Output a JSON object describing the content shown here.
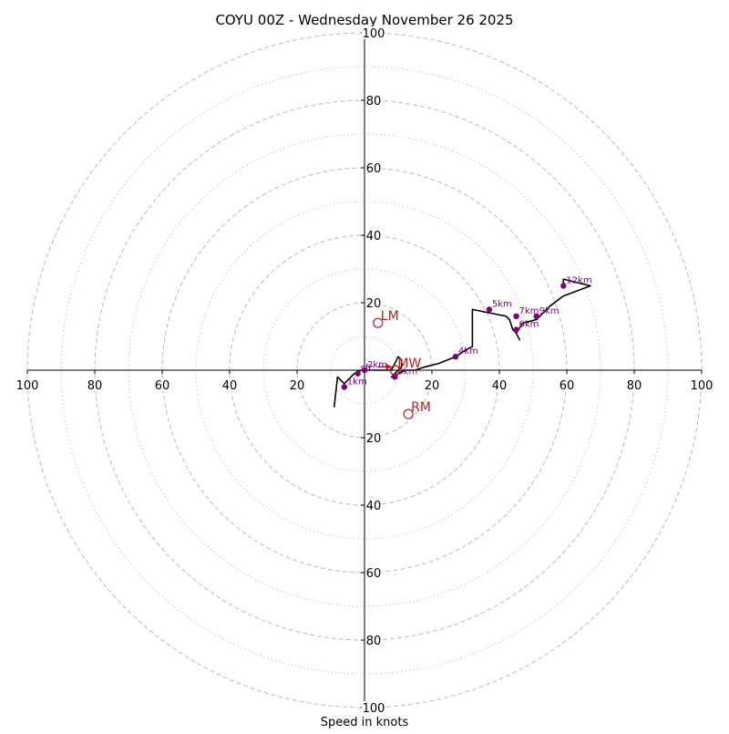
{
  "chart_data": {
    "type": "hodograph",
    "title": "COYU 00Z - Wednesday November 26 2025",
    "xlabel": "Speed in knots",
    "range_knots": 100,
    "axis_ticks": {
      "x_left": [
        "100",
        "80",
        "60",
        "40",
        "20"
      ],
      "x_right": [
        "20",
        "40",
        "60",
        "80",
        "100"
      ],
      "y_top": [
        "100",
        "80",
        "60",
        "40",
        "20"
      ],
      "y_bottom": [
        "20",
        "40",
        "60",
        "80",
        "100"
      ]
    },
    "rings": {
      "dashed_knots": [
        20,
        40,
        60,
        80,
        100
      ],
      "dotted_knots": [
        10,
        30,
        50,
        70,
        90
      ]
    },
    "colors": {
      "ring": "#bbbbbb",
      "axis": "#000000",
      "trace": "#000000",
      "height_marker": "#800080",
      "storm_motion": "#b22222"
    },
    "hodograph_trace_uv": [
      [
        -9,
        -11
      ],
      [
        -8,
        -2
      ],
      [
        -6,
        -4
      ],
      [
        -3,
        -1
      ],
      [
        -1,
        0
      ],
      [
        2,
        0
      ],
      [
        8,
        0
      ],
      [
        10,
        4
      ],
      [
        11,
        3
      ],
      [
        11,
        1
      ],
      [
        10,
        0
      ],
      [
        8,
        -2
      ],
      [
        9,
        -2
      ],
      [
        10,
        -1
      ],
      [
        12,
        0
      ],
      [
        15,
        0
      ],
      [
        18,
        1
      ],
      [
        22,
        2
      ],
      [
        27,
        4
      ],
      [
        30,
        6
      ],
      [
        32,
        7
      ],
      [
        32,
        18
      ],
      [
        37,
        17
      ],
      [
        42,
        16
      ],
      [
        43,
        15
      ],
      [
        44,
        12
      ],
      [
        45,
        11
      ],
      [
        46,
        9
      ],
      [
        45,
        11
      ],
      [
        47,
        14
      ],
      [
        51,
        15
      ],
      [
        55,
        19
      ],
      [
        59,
        22
      ],
      [
        67,
        25
      ],
      [
        59,
        27
      ],
      [
        59,
        25
      ]
    ],
    "height_markers": [
      {
        "label": "1km",
        "u": -6,
        "v": -5
      },
      {
        "label": "sfc",
        "u": -2,
        "v": -1
      },
      {
        "label": "2km",
        "u": 0,
        "v": 0
      },
      {
        "label": "3km",
        "u": 9,
        "v": -2
      },
      {
        "label": "4km",
        "u": 27,
        "v": 4
      },
      {
        "label": "5km",
        "u": 37,
        "v": 18
      },
      {
        "label": "6km",
        "u": 45,
        "v": 12
      },
      {
        "label": "7km",
        "u": 45,
        "v": 16
      },
      {
        "label": "9km",
        "u": 51,
        "v": 16
      },
      {
        "label": "12km",
        "u": 59,
        "v": 25
      }
    ],
    "storm_motion": [
      {
        "label": "LM",
        "u": 4,
        "v": 14
      },
      {
        "label": "MW",
        "u": 9,
        "v": 0
      },
      {
        "label": "RM",
        "u": 13,
        "v": -13
      }
    ],
    "mean_wind_arrow": {
      "from_u": 4,
      "from_v": 1,
      "to_u": 8,
      "to_v": 1
    }
  }
}
